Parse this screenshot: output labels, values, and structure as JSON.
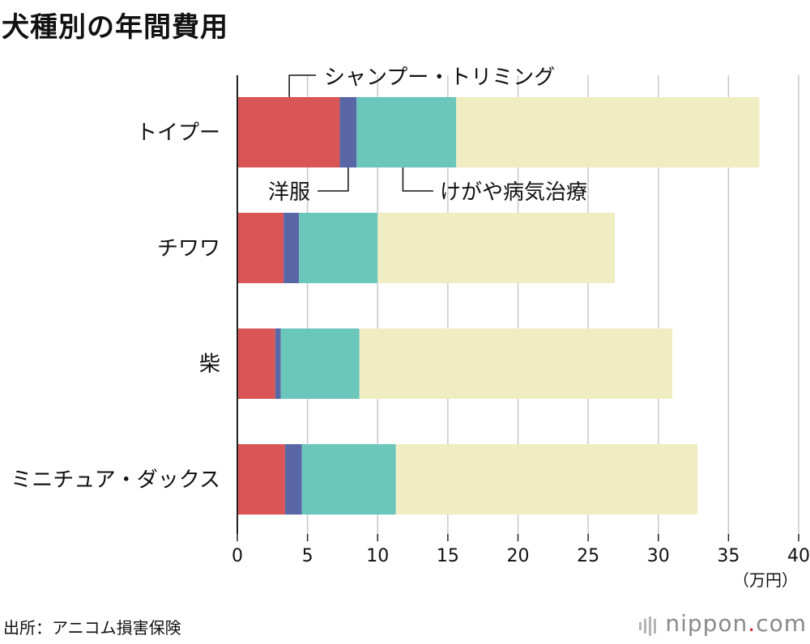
{
  "title": "犬種別の年間費用",
  "source": "出所：アニコム損害保険",
  "logo": {
    "main": "nippon",
    "dot": ".",
    "suffix": "com"
  },
  "chart_data": {
    "type": "bar",
    "orientation": "horizontal",
    "stacked": true,
    "categories": [
      "トイプー",
      "チワワ",
      "柴",
      "ミニチュア・ダックス"
    ],
    "series": [
      {
        "name": "シャンプー・トリミング",
        "color": "#d95556",
        "values": [
          7.3,
          3.3,
          2.7,
          3.4
        ]
      },
      {
        "name": "洋服",
        "color": "#5a67a6",
        "values": [
          1.2,
          1.1,
          0.4,
          1.2
        ]
      },
      {
        "name": "けがや病気治療",
        "color": "#6bc6bb",
        "values": [
          7.1,
          5.6,
          5.6,
          6.7
        ]
      },
      {
        "name": "",
        "color": "#f1edc3",
        "values": [
          21.6,
          16.9,
          22.3,
          21.5
        ]
      }
    ],
    "xlim": [
      0,
      40
    ],
    "xticks": [
      0,
      5,
      10,
      15,
      20,
      25,
      30,
      35,
      40
    ],
    "xunit": "（万円）",
    "grid": true,
    "legend": "annotation callouts on first bar"
  }
}
